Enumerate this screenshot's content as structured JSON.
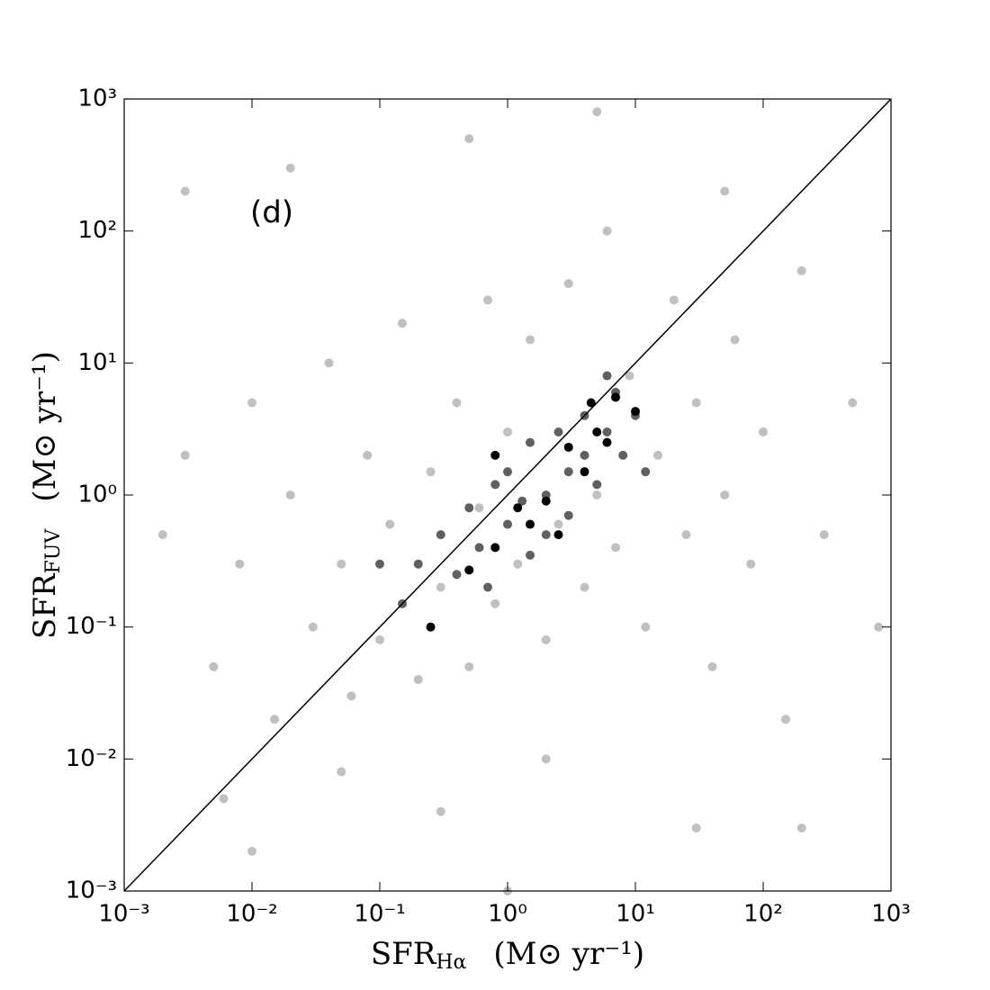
{
  "chart_data": {
    "type": "scatter",
    "annotation": "(d)",
    "x_label": {
      "main": "SFR",
      "sub": "Hα",
      "unit": "(M⊙ yr⁻¹)"
    },
    "y_label": {
      "main": "SFR",
      "sub": "FUV",
      "unit": "(M⊙ yr⁻¹)"
    },
    "log_x": true,
    "log_y": true,
    "xlim": [
      0.001,
      1000
    ],
    "ylim": [
      0.001,
      1000
    ],
    "xticks": [
      {
        "value": 0.001,
        "label": "10⁻³"
      },
      {
        "value": 0.01,
        "label": "10⁻²"
      },
      {
        "value": 0.1,
        "label": "10⁻¹"
      },
      {
        "value": 1,
        "label": "10⁰"
      },
      {
        "value": 10,
        "label": "10¹"
      },
      {
        "value": 100,
        "label": "10²"
      },
      {
        "value": 1000,
        "label": "10³"
      }
    ],
    "yticks": [
      {
        "value": 0.001,
        "label": "10⁻³"
      },
      {
        "value": 0.01,
        "label": "10⁻²"
      },
      {
        "value": 0.1,
        "label": "10⁻¹"
      },
      {
        "value": 1,
        "label": "10⁰"
      },
      {
        "value": 10,
        "label": "10¹"
      },
      {
        "value": 100,
        "label": "10²"
      },
      {
        "value": 1000,
        "label": "10³"
      }
    ],
    "series": [
      {
        "color": "#c0c0c0",
        "x": [
          0.002,
          0.003,
          0.005,
          0.008,
          0.01,
          0.015,
          0.02,
          0.03,
          0.04,
          0.05,
          0.06,
          0.08,
          0.1,
          0.12,
          0.15,
          0.2,
          0.25,
          0.3,
          0.4,
          0.5,
          0.6,
          0.7,
          0.8,
          1,
          1.2,
          1.5,
          2,
          2.5,
          3,
          4,
          5,
          6,
          7,
          9,
          12,
          15,
          20,
          25,
          30,
          40,
          50,
          60,
          80,
          100,
          150,
          200,
          300,
          500,
          800,
          0.003,
          0.02,
          0.5,
          5,
          50,
          0.006,
          0.05,
          2,
          30,
          200,
          0.01,
          0.3,
          1
        ],
        "values": [
          0.5,
          2,
          0.05,
          0.3,
          5,
          0.02,
          1,
          0.1,
          10,
          0.3,
          0.03,
          2,
          0.08,
          0.6,
          20,
          0.04,
          1.5,
          0.2,
          5,
          0.05,
          0.8,
          30,
          0.15,
          3,
          0.3,
          15,
          0.08,
          0.6,
          40,
          0.2,
          1,
          100,
          0.4,
          8,
          0.1,
          2,
          30,
          0.5,
          5,
          0.05,
          1,
          15,
          0.3,
          3,
          0.02,
          50,
          0.5,
          5,
          0.1,
          200,
          300,
          500,
          800,
          200,
          0.005,
          0.008,
          0.01,
          0.003,
          0.003,
          0.002,
          0.004,
          0.001
        ]
      },
      {
        "color": "#606060",
        "x": [
          0.2,
          0.3,
          0.4,
          0.5,
          0.6,
          0.8,
          1,
          1,
          1.3,
          1.5,
          2,
          2,
          2.5,
          3,
          3,
          4,
          4,
          5,
          6,
          7,
          8,
          10,
          0.7,
          1.5,
          0.15,
          0.1,
          12,
          6
        ],
        "values": [
          0.3,
          0.5,
          0.25,
          0.8,
          0.4,
          1.2,
          0.6,
          1.5,
          0.9,
          2.5,
          1,
          0.5,
          3,
          1.5,
          0.7,
          4,
          2,
          1.2,
          3,
          6,
          2,
          4,
          0.2,
          0.35,
          0.15,
          0.3,
          1.5,
          8
        ]
      },
      {
        "color": "#000000",
        "x": [
          0.25,
          0.5,
          0.8,
          1.2,
          1.5,
          2,
          2.5,
          3,
          4,
          4.5,
          5,
          6,
          7,
          0.8,
          10
        ],
        "values": [
          0.1,
          0.27,
          0.4,
          0.8,
          0.6,
          0.9,
          0.5,
          2.3,
          1.5,
          5,
          3,
          2.5,
          5.5,
          2,
          4.3
        ]
      }
    ],
    "lines": [
      {
        "color": "#000000",
        "x": [
          0.001,
          1000
        ],
        "values": [
          0.001,
          1000
        ]
      }
    ]
  }
}
